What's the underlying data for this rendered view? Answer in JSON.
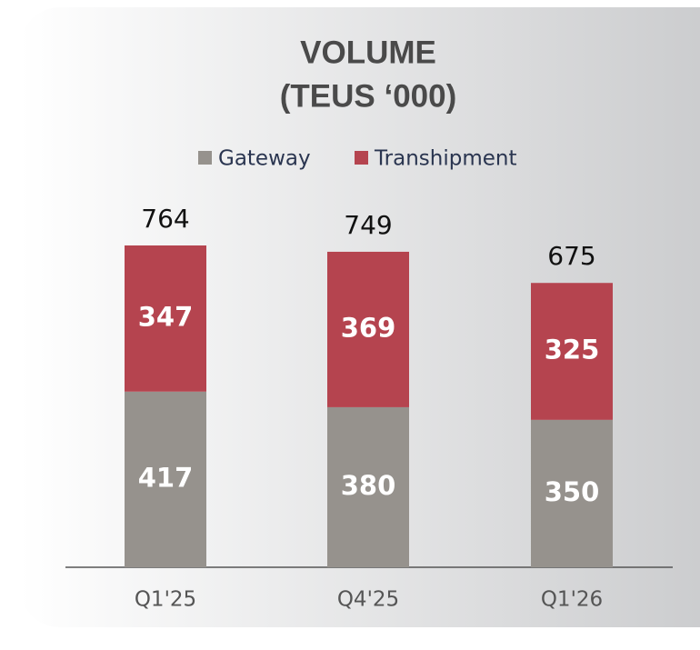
{
  "chart_data": {
    "type": "stacked-bar",
    "title": "VOLUME",
    "subtitle": "(TEUS ‘000)",
    "categories": [
      "Q1'25",
      "Q4'25",
      "Q1'26"
    ],
    "series": [
      {
        "name": "Gateway",
        "color": "#96928d",
        "values": [
          417,
          380,
          350
        ]
      },
      {
        "name": "Transhipment",
        "color": "#b5444f",
        "values": [
          347,
          369,
          325
        ]
      }
    ],
    "totals": [
      764,
      749,
      675
    ],
    "legend": "top"
  }
}
